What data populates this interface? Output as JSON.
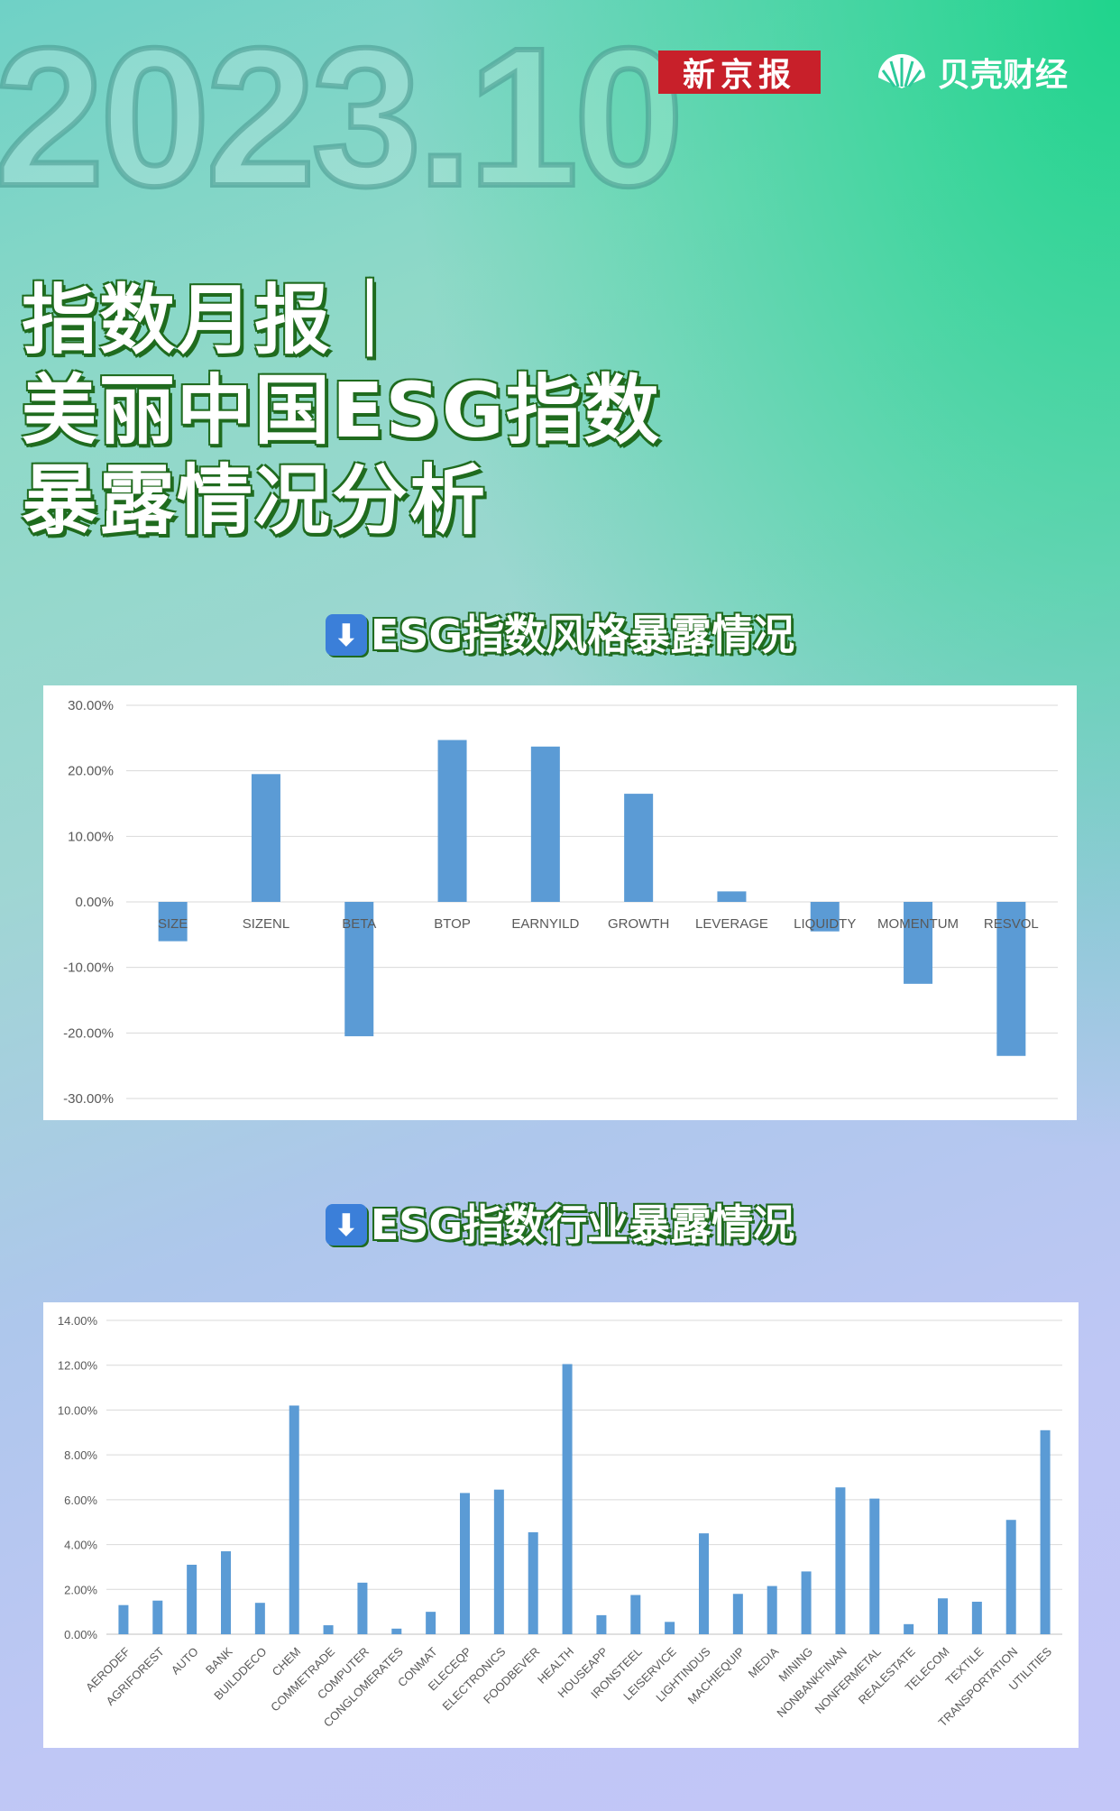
{
  "header": {
    "year_watermark": "2023.10",
    "logo_xjb": "新京报",
    "logo_bk": "贝壳财经"
  },
  "title": {
    "line1": "指数月报｜",
    "line2": "美丽中国ESG指数",
    "line3": "暴露情况分析"
  },
  "sections": {
    "style_heading": "ESG指数风格暴露情况",
    "industry_heading": "ESG指数行业暴露情况",
    "arrow_glyph": "⬇"
  },
  "chart_data": [
    {
      "type": "bar",
      "categories": [
        "SIZE",
        "SIZENL",
        "BETA",
        "BTOP",
        "EARNYILD",
        "GROWTH",
        "LEVERAGE",
        "LIQUIDTY",
        "MOMENTUM",
        "RESVOL"
      ],
      "values": [
        -6.0,
        19.5,
        -20.5,
        24.7,
        23.7,
        16.5,
        1.6,
        -4.5,
        -12.5,
        -23.5
      ],
      "ylim": [
        -30,
        30
      ],
      "yticks": [
        "30.00%",
        "20.00%",
        "10.00%",
        "0.00%",
        "-10.00%",
        "-20.00%",
        "-30.00%"
      ],
      "ytick_values": [
        30,
        20,
        10,
        0,
        -10,
        -20,
        -30
      ],
      "grid": true,
      "color": "#5b9bd5"
    },
    {
      "type": "bar",
      "categories": [
        "AERODEF",
        "AGRIFOREST",
        "AUTO",
        "BANK",
        "BUILDDECO",
        "CHEM",
        "COMMETRADE",
        "COMPUTER",
        "CONGLOMERATES",
        "CONMAT",
        "ELECEQP",
        "ELECTRONICS",
        "FOODBEVER",
        "HEALTH",
        "HOUSEAPP",
        "IRONSTEEL",
        "LEISERVICE",
        "LIGHTINDUS",
        "MACHIEQUIP",
        "MEDIA",
        "MINING",
        "NONBANKFINAN",
        "NONFERMETAL",
        "REALESTATE",
        "TELECOM",
        "TEXTILE",
        "TRANSPORTATION",
        "UTILITIES"
      ],
      "values": [
        1.3,
        1.5,
        3.1,
        3.7,
        1.4,
        10.2,
        0.4,
        2.3,
        0.25,
        1.0,
        6.3,
        6.45,
        4.55,
        12.05,
        0.85,
        1.75,
        0.55,
        4.5,
        1.8,
        2.15,
        2.8,
        6.55,
        6.05,
        0.45,
        1.6,
        1.45,
        5.1,
        9.1
      ],
      "ylim": [
        0,
        14
      ],
      "yticks": [
        "14.00%",
        "12.00%",
        "10.00%",
        "8.00%",
        "6.00%",
        "4.00%",
        "2.00%",
        "0.00%"
      ],
      "ytick_values": [
        14,
        12,
        10,
        8,
        6,
        4,
        2,
        0
      ],
      "grid": true,
      "color": "#5b9bd5"
    }
  ]
}
